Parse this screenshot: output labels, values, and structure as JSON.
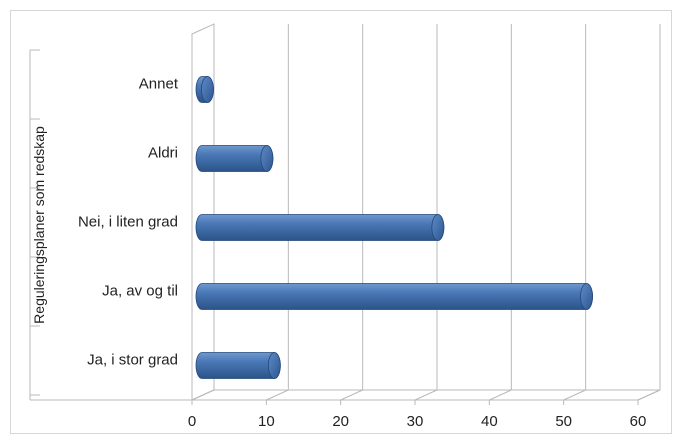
{
  "chart_data": {
    "type": "bar",
    "orientation": "horizontal",
    "categories": [
      "Annet",
      "Aldri",
      "Nei, i liten grad",
      "Ja, av og til",
      "Ja, i stor grad"
    ],
    "values": [
      1,
      9,
      32,
      52,
      10
    ],
    "ylabel": "Reguleringsplaner som redskap",
    "xlim": [
      0,
      60
    ],
    "xticks": [
      0,
      10,
      20,
      30,
      40,
      50,
      60
    ],
    "grid": true,
    "bar_color": "#3c6aa8"
  }
}
